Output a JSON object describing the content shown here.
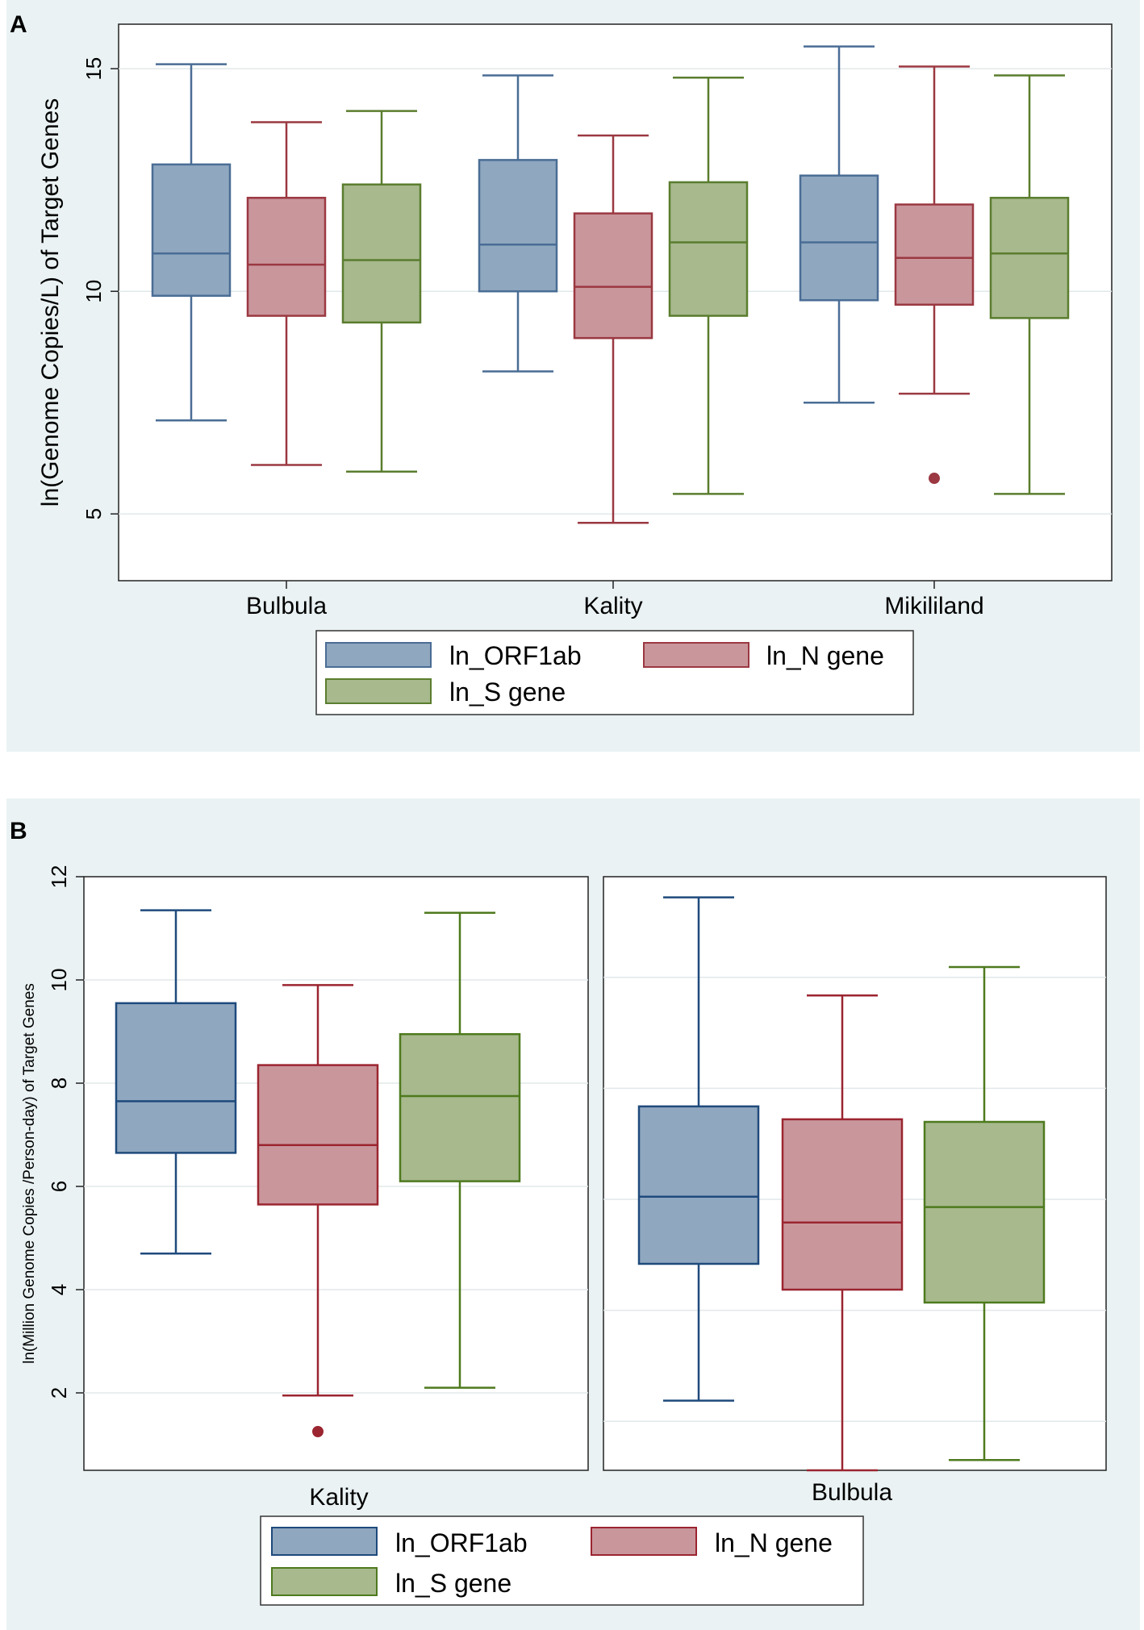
{
  "chart_data": [
    {
      "panel": "A",
      "type": "box",
      "ylabel": "ln(Genome Copies/L) of Target Genes",
      "ylim": [
        3.5,
        16
      ],
      "yticks": [
        5,
        10,
        15
      ],
      "grid": true,
      "categories": [
        "Bulbula",
        "Kality",
        "Mikililand"
      ],
      "legend": [
        "ln_ORF1ab",
        "ln_N gene",
        "ln_S gene"
      ],
      "series": [
        {
          "name": "ln_ORF1ab",
          "color": "#4a6d95",
          "fill": "#8fa7bf",
          "boxes": [
            {
              "min": 7.1,
              "q1": 9.9,
              "median": 10.85,
              "q3": 12.85,
              "max": 15.1
            },
            {
              "min": 8.2,
              "q1": 10.0,
              "median": 11.05,
              "q3": 12.95,
              "max": 14.85
            },
            {
              "min": 7.5,
              "q1": 9.8,
              "median": 11.1,
              "q3": 12.6,
              "max": 15.5
            }
          ]
        },
        {
          "name": "ln_N gene",
          "color": "#9b3841",
          "fill": "#c9969c",
          "boxes": [
            {
              "min": 6.1,
              "q1": 9.45,
              "median": 10.6,
              "q3": 12.1,
              "max": 13.8
            },
            {
              "min": 4.8,
              "q1": 8.95,
              "median": 10.1,
              "q3": 11.75,
              "max": 13.5
            },
            {
              "min": 7.7,
              "q1": 9.7,
              "median": 10.75,
              "q3": 11.95,
              "max": 15.05,
              "outliers": [
                5.8
              ]
            }
          ]
        },
        {
          "name": "ln_S gene",
          "color": "#5a7d2e",
          "fill": "#a7b98d",
          "boxes": [
            {
              "min": 5.95,
              "q1": 9.3,
              "median": 10.7,
              "q3": 12.4,
              "max": 14.05
            },
            {
              "min": 5.45,
              "q1": 9.45,
              "median": 11.1,
              "q3": 12.45,
              "max": 14.8
            },
            {
              "min": 5.45,
              "q1": 9.4,
              "median": 10.85,
              "q3": 12.1,
              "max": 14.85
            }
          ]
        }
      ]
    },
    {
      "panel": "B",
      "type": "box",
      "ylabel": "ln(Million Genome Copies /Person-day) of Target Genes",
      "ylim": [
        0.5,
        12
      ],
      "yticks": [
        2,
        4,
        6,
        8,
        10,
        12
      ],
      "grid": true,
      "categories": [
        "Kality",
        "Bulbula"
      ],
      "legend": [
        "ln_ORF1ab",
        "ln_N gene",
        "ln_S gene"
      ],
      "series": [
        {
          "name": "ln_ORF1ab",
          "color": "#1f4a7c",
          "fill": "#8fa7bf",
          "boxes": [
            {
              "min": 4.7,
              "q1": 6.65,
              "median": 7.65,
              "q3": 9.55,
              "max": 11.35
            },
            {
              "min": 1.85,
              "q1": 4.5,
              "median": 5.8,
              "q3": 7.55,
              "max": 11.6
            }
          ]
        },
        {
          "name": "ln_N gene",
          "color": "#9b2530",
          "fill": "#c9969c",
          "boxes": [
            {
              "min": 1.95,
              "q1": 5.65,
              "median": 6.8,
              "q3": 8.35,
              "max": 9.9,
              "outliers": [
                1.25
              ]
            },
            {
              "min": 0.5,
              "q1": 4.0,
              "median": 5.3,
              "q3": 7.3,
              "max": 9.7
            }
          ]
        },
        {
          "name": "ln_S gene",
          "color": "#4e7a1e",
          "fill": "#a7b98d",
          "boxes": [
            {
              "min": 2.1,
              "q1": 6.1,
              "median": 7.75,
              "q3": 8.95,
              "max": 11.3
            },
            {
              "min": 0.7,
              "q1": 3.75,
              "median": 5.6,
              "q3": 7.25,
              "max": 10.25
            }
          ]
        }
      ]
    }
  ]
}
